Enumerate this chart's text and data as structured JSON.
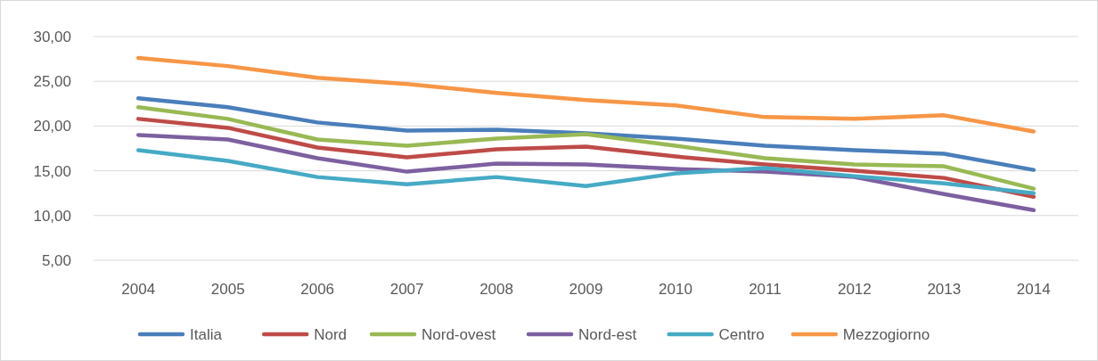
{
  "chart_data": {
    "type": "line",
    "categories": [
      "2004",
      "2005",
      "2006",
      "2007",
      "2008",
      "2009",
      "2010",
      "2011",
      "2012",
      "2013",
      "2014"
    ],
    "ylim": [
      5,
      30
    ],
    "yticks": [
      {
        "value": 5,
        "label": "5,00"
      },
      {
        "value": 10,
        "label": "10,00"
      },
      {
        "value": 15,
        "label": "15,00"
      },
      {
        "value": 20,
        "label": "20,00"
      },
      {
        "value": 25,
        "label": "25,00"
      },
      {
        "value": 30,
        "label": "30,00"
      }
    ],
    "grid": "y",
    "legend": "bottom",
    "marker": "none",
    "line_style": "solid",
    "series": [
      {
        "name": "Italia",
        "color": "#4a7ebb",
        "values": [
          23.1,
          22.1,
          20.4,
          19.5,
          19.6,
          19.2,
          18.6,
          17.8,
          17.3,
          16.9,
          15.1
        ]
      },
      {
        "name": "Nord",
        "color": "#be4b48",
        "values": [
          20.8,
          19.8,
          17.6,
          16.5,
          17.4,
          17.7,
          16.6,
          15.7,
          15.0,
          14.2,
          12.1
        ]
      },
      {
        "name": "Nord-ovest",
        "color": "#98b954",
        "values": [
          22.1,
          20.8,
          18.5,
          17.8,
          18.6,
          19.1,
          17.8,
          16.4,
          15.7,
          15.5,
          13.0
        ]
      },
      {
        "name": "Nord-est",
        "color": "#7d60a0",
        "values": [
          19.0,
          18.5,
          16.4,
          14.9,
          15.8,
          15.7,
          15.2,
          14.9,
          14.3,
          12.4,
          10.6
        ]
      },
      {
        "name": "Centro",
        "color": "#46aac5",
        "values": [
          17.3,
          16.1,
          14.3,
          13.5,
          14.3,
          13.3,
          14.7,
          15.3,
          14.4,
          13.6,
          12.5
        ]
      },
      {
        "name": "Mezzogiorno",
        "color": "#f79646",
        "values": [
          27.6,
          26.7,
          25.4,
          24.7,
          23.7,
          22.9,
          22.3,
          21.0,
          20.8,
          21.2,
          19.4
        ]
      }
    ]
  }
}
